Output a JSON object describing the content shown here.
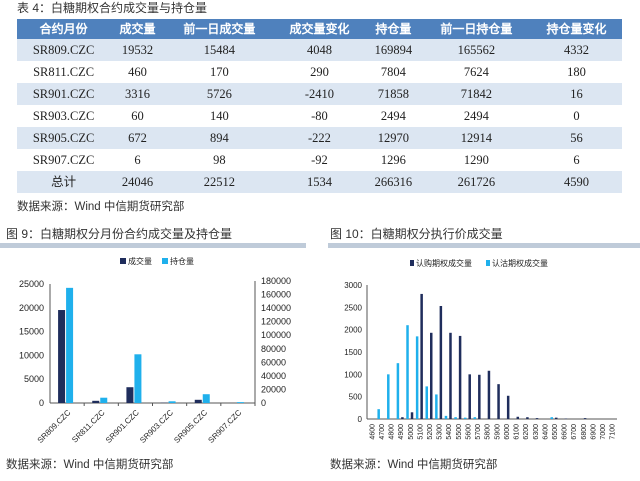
{
  "table": {
    "title": "表 4：白糖期权合约成交量与持仓量",
    "headers": [
      "合约月份",
      "成交量",
      "前一日成交量",
      "成交量变化",
      "持仓量",
      "前一日持仓量",
      "持仓量变化"
    ],
    "rows": [
      [
        "SR809.CZC",
        "19532",
        "15484",
        "4048",
        "169894",
        "165562",
        "4332"
      ],
      [
        "SR811.CZC",
        "460",
        "170",
        "290",
        "7804",
        "7624",
        "180"
      ],
      [
        "SR901.CZC",
        "3316",
        "5726",
        "-2410",
        "71858",
        "71842",
        "16"
      ],
      [
        "SR903.CZC",
        "60",
        "140",
        "-80",
        "2494",
        "2494",
        "0"
      ],
      [
        "SR905.CZC",
        "672",
        "894",
        "-222",
        "12970",
        "12914",
        "56"
      ],
      [
        "SR907.CZC",
        "6",
        "98",
        "-92",
        "1296",
        "1290",
        "6"
      ],
      [
        "总计",
        "24046",
        "22512",
        "1534",
        "266316",
        "261726",
        "4590"
      ]
    ],
    "source": "数据来源：Wind  中信期货研究部"
  },
  "fig9": {
    "title": "图 9：白糖期权分月份合约成交量及持仓量",
    "source": "数据来源：Wind  中信期货研究部"
  },
  "fig10": {
    "title": "图 10：白糖期权分执行价成交量",
    "source": "数据来源：Wind  中信期货研究部"
  },
  "colors": {
    "dark": "#1f2d5c",
    "light": "#1fb0ec",
    "header": "#4f81bd"
  },
  "chart_data": [
    {
      "type": "bar",
      "title": "白糖期权分月份合约成交量及持仓量",
      "categories": [
        "SR809.CZC",
        "SR811.CZC",
        "SR901.CZC",
        "SR903.CZC",
        "SR905.CZC",
        "SR907.CZC"
      ],
      "series": [
        {
          "name": "成交量",
          "axis": "left",
          "values": [
            19532,
            460,
            3316,
            60,
            672,
            6
          ]
        },
        {
          "name": "持仓量",
          "axis": "right",
          "values": [
            169894,
            7804,
            71858,
            2494,
            12970,
            1296
          ]
        }
      ],
      "ylim": [
        0,
        25000
      ],
      "yticks": [
        "0",
        "5000",
        "10000",
        "15000",
        "20000",
        "25000"
      ],
      "y2lim": [
        0,
        180000
      ],
      "y2ticks": [
        "0",
        "20000",
        "40000",
        "60000",
        "80000",
        "100000",
        "120000",
        "140000",
        "160000",
        "180000"
      ],
      "legend": "top"
    },
    {
      "type": "bar",
      "title": "白糖期权分执行价成交量",
      "categories": [
        "4600",
        "4700",
        "4800",
        "4900",
        "5000",
        "5100",
        "5200",
        "5300",
        "5400",
        "5500",
        "5600",
        "5700",
        "5800",
        "5900",
        "6000",
        "6100",
        "6200",
        "6300",
        "6400",
        "6500",
        "6600",
        "6700",
        "6800",
        "6900",
        "7000",
        "7100"
      ],
      "series": [
        {
          "name": "认购期权成交量",
          "values": [
            0,
            0,
            0,
            40,
            150,
            2800,
            1930,
            2530,
            1930,
            1860,
            1000,
            990,
            1080,
            780,
            520,
            50,
            40,
            20,
            0,
            30,
            10,
            0,
            20,
            0,
            0,
            0
          ]
        },
        {
          "name": "认沽期权成交量",
          "values": [
            0,
            220,
            1000,
            1250,
            2100,
            1850,
            730,
            550,
            70,
            40,
            30,
            40,
            0,
            0,
            0,
            0,
            0,
            0,
            0,
            40,
            0,
            0,
            0,
            0,
            0,
            0
          ]
        }
      ],
      "ylim": [
        0,
        3000
      ],
      "yticks": [
        "0",
        "500",
        "1000",
        "1500",
        "2000",
        "2500",
        "3000"
      ],
      "legend": "top"
    }
  ]
}
